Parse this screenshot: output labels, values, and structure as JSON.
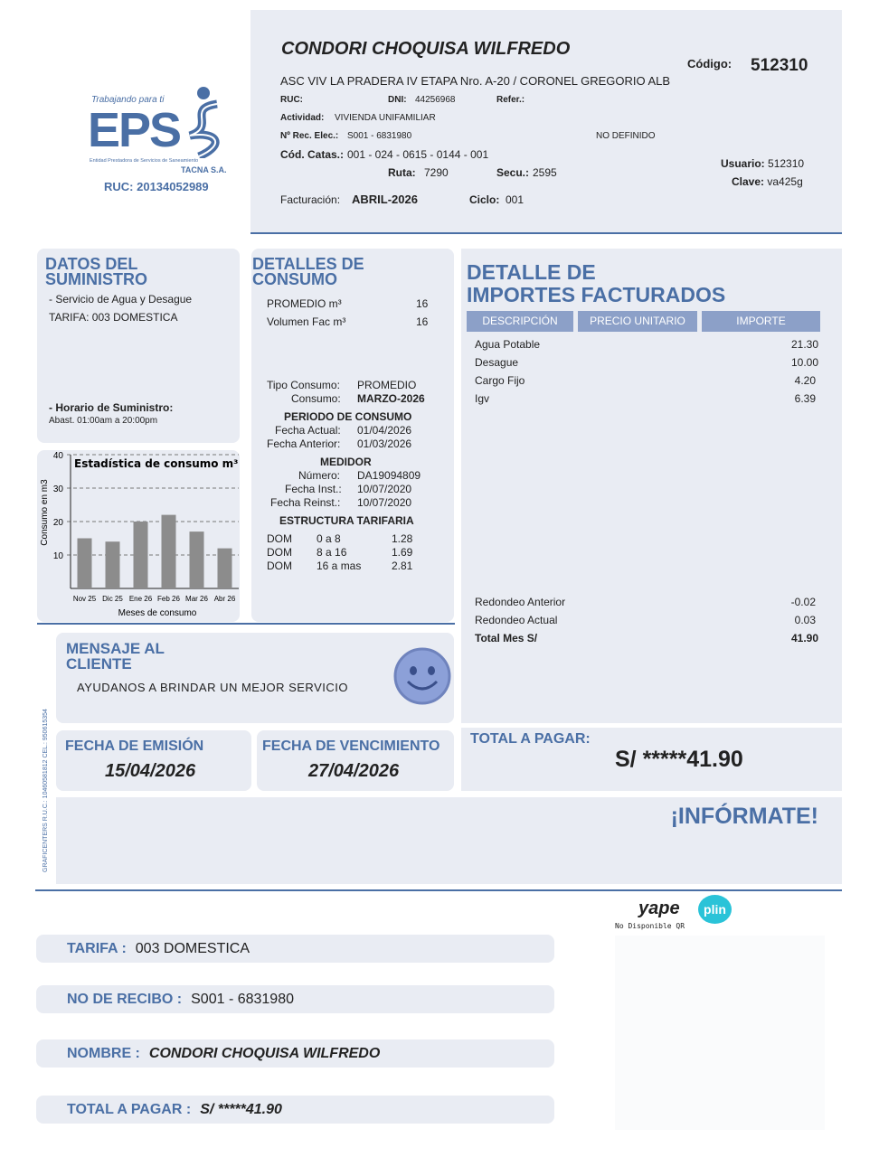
{
  "company": {
    "tagline": "Trabajando para ti",
    "logo_text": "EPS",
    "full_name": "Entidad Prestadora de Servicios de Saneamiento",
    "city": "TACNA S.A.",
    "ruc": "RUC: 20134052989"
  },
  "header": {
    "name": "CONDORI CHOQUISA WILFREDO",
    "codigo_label": "Código:",
    "codigo": "512310",
    "address": "ASC VIV LA PRADERA IV ETAPA Nro. A-20 / CORONEL GREGORIO ALB",
    "ruc_label": "RUC:",
    "dni_label": "DNI:",
    "dni": "44256968",
    "refer_label": "Refer.:",
    "actividad_label": "Actividad:",
    "actividad": "VIVIENDA UNIFAMILIAR",
    "rec_label": "Nº Rec. Elec.:",
    "rec": "S001 - 6831980",
    "no_definido": "NO DEFINIDO",
    "catas_label": "Cód. Catas.:",
    "catas": "001 - 024 - 0615 - 0144 - 001",
    "ruta_label": "Ruta:",
    "ruta": "7290",
    "secu_label": "Secu.:",
    "secu": "2595",
    "usuario_label": "Usuario:",
    "usuario": "512310",
    "clave_label": "Clave:",
    "clave": "va425g",
    "facturacion_label": "Facturación:",
    "facturacion": "ABRIL-2026",
    "ciclo_label": "Ciclo:",
    "ciclo": "001"
  },
  "suministro": {
    "title1": "DATOS DEL",
    "title2": "SUMINISTRO",
    "servicio": "- Servicio de Agua y Desague",
    "tarifa": "TARIFA: 003 DOMESTICA",
    "horario_label": "- Horario de Suministro:",
    "horario": "Abast. 01:00am a 20:00pm"
  },
  "chart_data": {
    "type": "bar",
    "title": "Estadística de consumo m³",
    "xlabel": "Meses de consumo",
    "ylabel": "Consumo en m3",
    "categories": [
      "Nov 25",
      "Dic 25",
      "Ene 26",
      "Feb 26",
      "Mar 26",
      "Abr 26"
    ],
    "values": [
      15,
      14,
      20,
      22,
      17,
      12
    ],
    "ylim": [
      0,
      40
    ],
    "yticks": [
      10,
      20,
      30,
      40
    ],
    "grid": true,
    "bar_color": "#8c8c8c"
  },
  "consumo": {
    "title1": "DETALLES DE",
    "title2": "CONSUMO",
    "promedio_label": "PROMEDIO m³",
    "promedio": "16",
    "volumen_label": "Volumen Fac m³",
    "volumen": "16",
    "tipo_label": "Tipo Consumo:",
    "tipo": "PROMEDIO",
    "consumo_label": "Consumo:",
    "consumo": "MARZO-2026",
    "periodo_title": "PERIODO DE CONSUMO",
    "fa_label": "Fecha Actual:",
    "fa": "01/04/2026",
    "fan_label": "Fecha Anterior:",
    "fan": "01/03/2026",
    "medidor_title": "MEDIDOR",
    "num_label": "Número:",
    "num": "DA19094809",
    "fi_label": "Fecha Inst.:",
    "fi": "10/07/2020",
    "fr_label": "Fecha Reinst.:",
    "fr": "10/07/2020",
    "estructura_title": "ESTRUCTURA TARIFARIA",
    "tarifas": [
      [
        "DOM",
        "0 a 8",
        "1.28"
      ],
      [
        "DOM",
        "8 a 16",
        "1.69"
      ],
      [
        "DOM",
        "16 a mas",
        "2.81"
      ]
    ]
  },
  "importes": {
    "title1": "DETALLE DE",
    "title2": "IMPORTES FACTURADOS",
    "headers": [
      "DESCRIPCIÓN",
      "PRECIO UNITARIO",
      "IMPORTE"
    ],
    "items": [
      [
        "Agua Potable",
        "21.30"
      ],
      [
        "Desague",
        "10.00"
      ],
      [
        "Cargo Fijo",
        "4.20"
      ],
      [
        "Igv",
        "6.39"
      ]
    ],
    "red_ant_label": "Redondeo Anterior",
    "red_ant": "-0.02",
    "red_act_label": "Redondeo Actual",
    "red_act": "0.03",
    "total_label": "Total Mes S/",
    "total": "41.90"
  },
  "mensaje": {
    "title1": "MENSAJE AL",
    "title2": "CLIENTE",
    "text": "AYUDANOS A BRINDAR UN MEJOR SERVICIO"
  },
  "fechas": {
    "emision_label": "FECHA DE EMISIÓN",
    "emision": "15/04/2026",
    "venc_label": "FECHA DE VENCIMIENTO",
    "venc": "27/04/2026"
  },
  "total": {
    "label": "TOTAL A PAGAR:",
    "value": "S/ *****41.90"
  },
  "informate": "¡INFÓRMATE!",
  "printer": "GRAFICENTERS  R.U.C.: 10460581812 CEL.: 950615354",
  "payments": {
    "yape": "yape",
    "plin": "plin",
    "qr_note": "No Disponible QR"
  },
  "footer": [
    {
      "label": "TARIFA :",
      "value": "003 DOMESTICA"
    },
    {
      "label": "NO DE RECIBO :",
      "value": "S001 - 6831980"
    },
    {
      "label": "NOMBRE :",
      "value": "CONDORI CHOQUISA WILFREDO"
    },
    {
      "label": "TOTAL A PAGAR :",
      "value": "S/ *****41.90"
    }
  ]
}
